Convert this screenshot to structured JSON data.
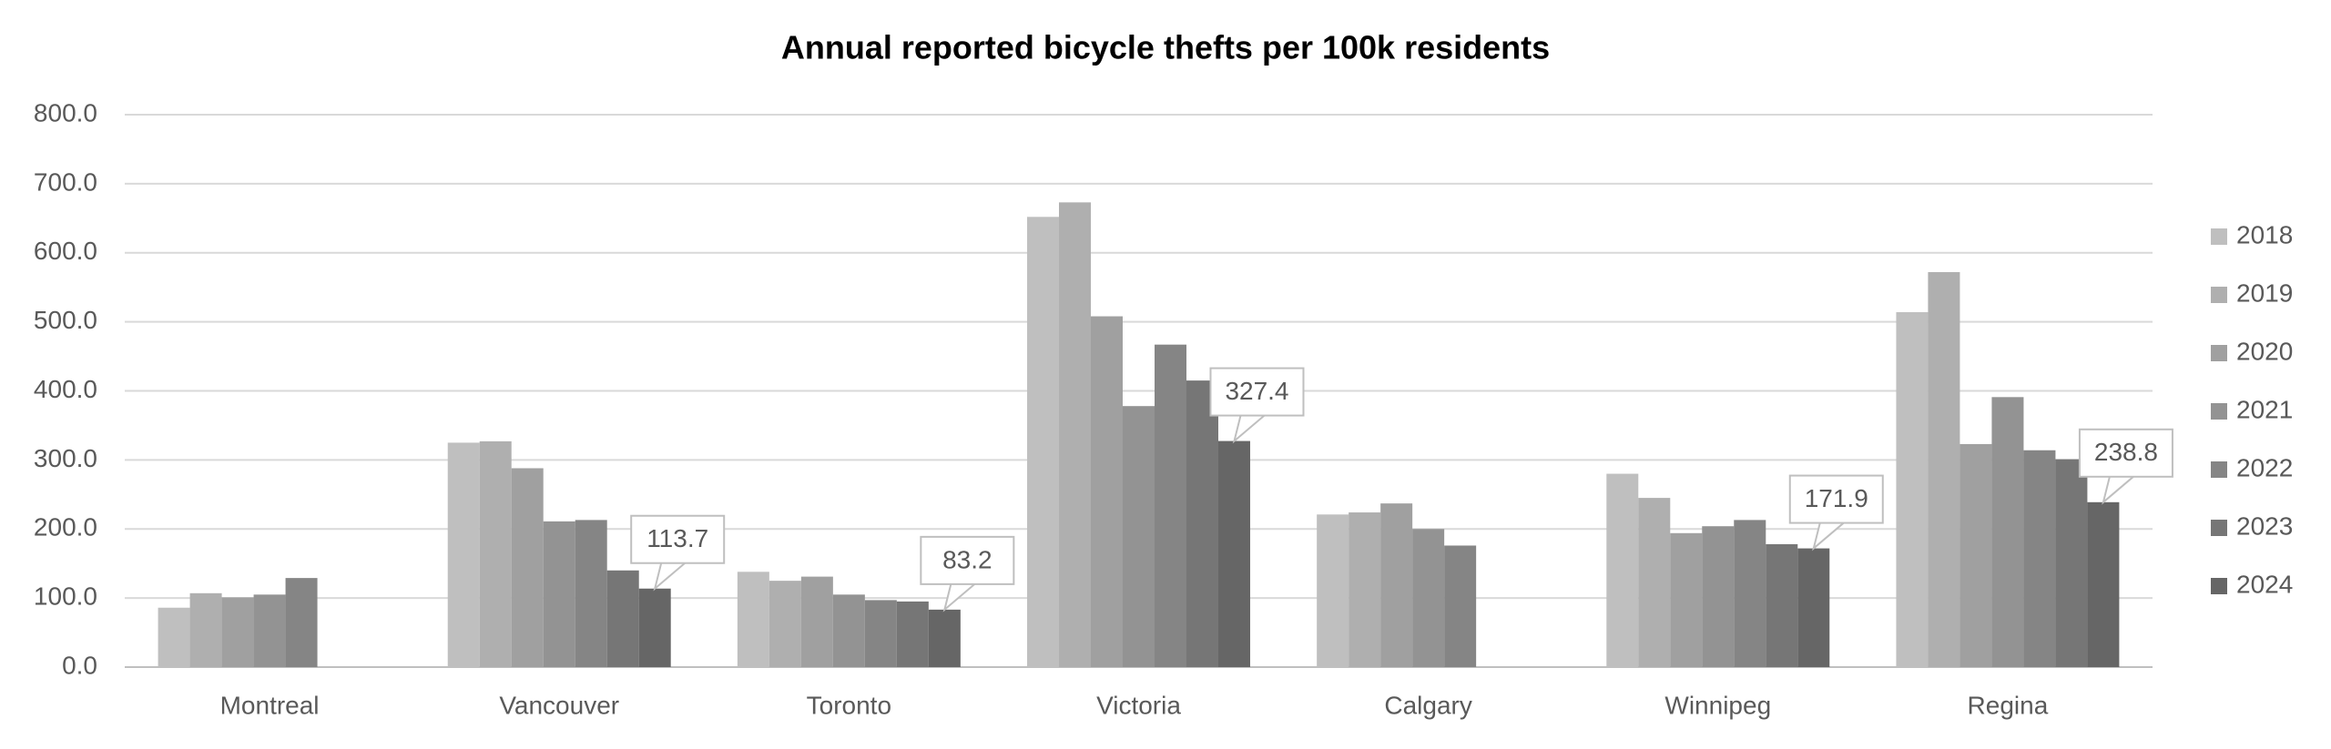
{
  "chart_data": {
    "type": "bar",
    "title": "Annual reported bicycle thefts per 100k residents",
    "categories": [
      "Montreal",
      "Vancouver",
      "Toronto",
      "Victoria",
      "Calgary",
      "Winnipeg",
      "Regina"
    ],
    "series": [
      {
        "name": "2018",
        "color": "#bfbfbf",
        "values": [
          86,
          325,
          138,
          652,
          221,
          280,
          514
        ]
      },
      {
        "name": "2019",
        "color": "#afafaf",
        "values": [
          107,
          327,
          125,
          673,
          224,
          245,
          572
        ]
      },
      {
        "name": "2020",
        "color": "#a0a0a0",
        "values": [
          101,
          288,
          131,
          508,
          237,
          194,
          323
        ]
      },
      {
        "name": "2021",
        "color": "#939393",
        "values": [
          105,
          211,
          105,
          378,
          200,
          204,
          391
        ]
      },
      {
        "name": "2022",
        "color": "#858585",
        "values": [
          129,
          213,
          97,
          467,
          176,
          213,
          314
        ]
      },
      {
        "name": "2023",
        "color": "#767676",
        "values": [
          null,
          140,
          95,
          415,
          null,
          178,
          301
        ]
      },
      {
        "name": "2024",
        "color": "#666666",
        "values": [
          null,
          113.7,
          83.2,
          327.4,
          null,
          171.9,
          238.8
        ],
        "data_labels": true
      }
    ],
    "ylim": [
      0,
      800
    ],
    "yticks": [
      {
        "value": 0,
        "label": "0.0"
      },
      {
        "value": 100,
        "label": "100.0"
      },
      {
        "value": 200,
        "label": "200.0"
      },
      {
        "value": 300,
        "label": "300.0"
      },
      {
        "value": 400,
        "label": "400.0"
      },
      {
        "value": 500,
        "label": "500.0"
      },
      {
        "value": 600,
        "label": "600.0"
      },
      {
        "value": 700,
        "label": "700.0"
      },
      {
        "value": 800,
        "label": "800.0"
      }
    ],
    "grid": true,
    "legend": "right"
  }
}
